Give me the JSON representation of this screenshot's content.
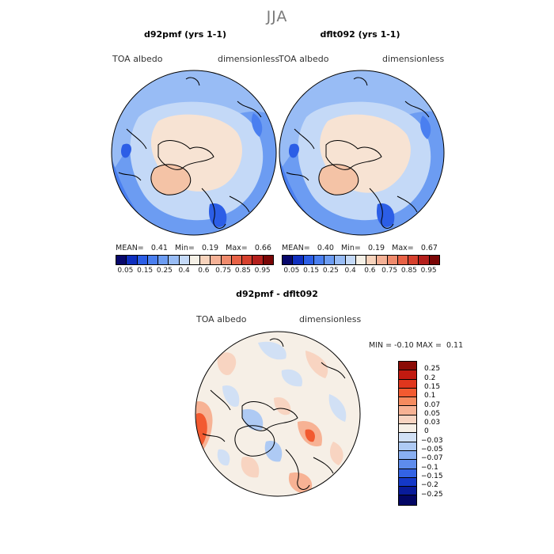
{
  "season": "JJA",
  "panels": [
    {
      "title": "d92pmf (yrs 1-1)",
      "var_label": "TOA  albedo",
      "units_label": "dimensionless",
      "mean_label": "MEAN=",
      "mean": "0.41",
      "min_label": "Min=",
      "min": "0.19",
      "max_label": "Max=",
      "max": "0.66"
    },
    {
      "title": "dflt092 (yrs 1-1)",
      "var_label": "TOA  albedo",
      "units_label": "dimensionless",
      "mean_label": "MEAN=",
      "mean": "0.40",
      "min_label": "Min=",
      "min": "0.19",
      "max_label": "Max=",
      "max": "0.67"
    }
  ],
  "albedo_colorbar": {
    "colors": [
      "#08086b",
      "#0f2fbf",
      "#2c5ee6",
      "#4a7ff0",
      "#6c9cf2",
      "#98bcf5",
      "#c4d9f7",
      "#f5f0e6",
      "#f7d3bc",
      "#f4b196",
      "#ef8a6c",
      "#e86246",
      "#d6402d",
      "#b41f1c",
      "#7a0606"
    ],
    "tick_labels": [
      "0.05",
      "0.15",
      "0.25",
      "0.4",
      "0.6",
      "0.75",
      "0.85",
      "0.95"
    ]
  },
  "diff_panel": {
    "title": "d92pmf - dflt092",
    "var_label": "TOA  albedo",
    "units_label": "dimensionless",
    "min_label": "MIN =",
    "min": "-0.10",
    "max_label": "MAX =",
    "max": "0.11"
  },
  "diff_colorbar": {
    "colors": [
      "#8b0b06",
      "#c21a10",
      "#e0361d",
      "#f25a30",
      "#f58b5f",
      "#f7b294",
      "#f8d4c1",
      "#f6efe6",
      "#d1e0f5",
      "#aecaf4",
      "#89aff1",
      "#5e8cec",
      "#3363e4",
      "#1438c8",
      "#091b9a",
      "#030665"
    ],
    "tick_labels": [
      "0.25",
      "0.2",
      "0.15",
      "0.1",
      "0.07",
      "0.05",
      "0.03",
      "0",
      "−0.03",
      "−0.05",
      "−0.07",
      "−0.1",
      "−0.15",
      "−0.2",
      "−0.25"
    ]
  }
}
